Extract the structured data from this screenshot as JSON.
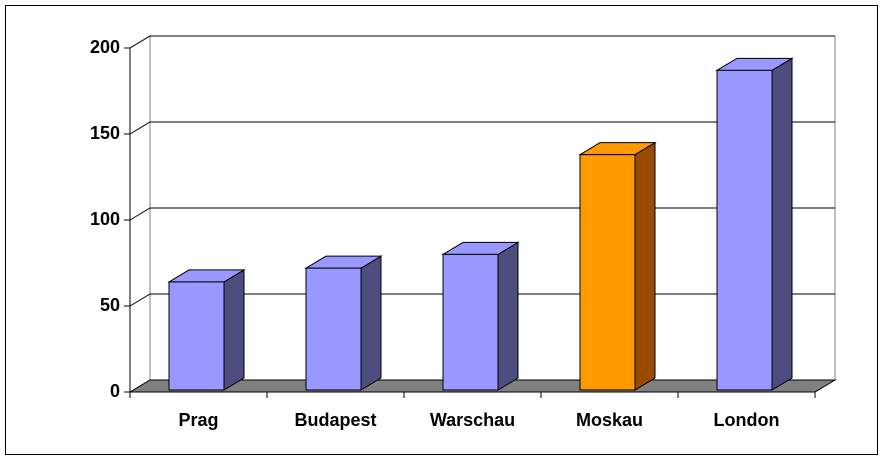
{
  "chart_data": {
    "type": "bar3d",
    "categories": [
      "Prag",
      "Budapest",
      "Warschau",
      "Moskau",
      "London"
    ],
    "values": [
      64,
      72,
      80,
      138,
      187
    ],
    "colors": [
      "#9999ff",
      "#9999ff",
      "#9999ff",
      "#ff9900",
      "#9999ff"
    ],
    "side_colors": [
      "#4d4d80",
      "#4d4d80",
      "#4d4d80",
      "#994c00",
      "#4d4d80"
    ],
    "ylim": [
      0,
      200
    ],
    "yticks": [
      0,
      50,
      100,
      150,
      200
    ],
    "grid": true
  }
}
